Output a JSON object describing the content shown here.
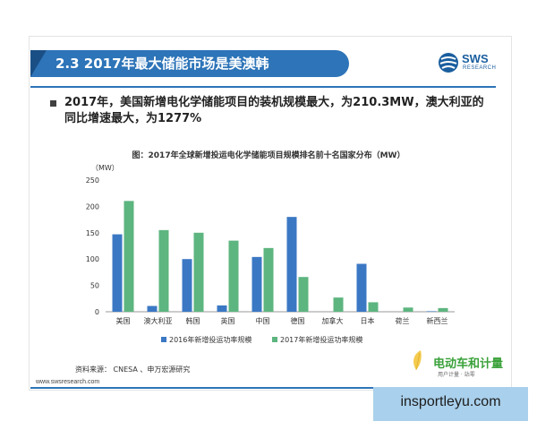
{
  "header": {
    "title": "2.3 2017年最大储能市场是美澳韩",
    "logo_text": "SWS",
    "logo_sub": "RESEARCH"
  },
  "bullet": {
    "text": "2017年，美国新增电化学储能项目的装机规模最大，为210.3MW，澳大利亚的同比增速最大，为1277%"
  },
  "chart_data": {
    "type": "bar",
    "title": "图：2017年全球新增投运电化学储能项目规模排名前十名国家分布（MW）",
    "ylabel": "（MW）",
    "ylim": [
      0,
      250
    ],
    "yticks": [
      0,
      50,
      100,
      150,
      200,
      250
    ],
    "grid": false,
    "legend_position": "bottom",
    "categories": [
      "美国",
      "澳大利亚",
      "韩国",
      "英国",
      "中国",
      "德国",
      "加拿大",
      "日本",
      "荷兰",
      "新西兰"
    ],
    "series": [
      {
        "name": "2016年新增投运功率规模",
        "color": "#3b78c4",
        "values": [
          147,
          11,
          100,
          12,
          104,
          180,
          0,
          91,
          0,
          1
        ]
      },
      {
        "name": "2017年新增投运功率规模",
        "color": "#5db57f",
        "values": [
          210.3,
          155,
          150,
          135,
          121,
          66,
          27,
          18,
          8,
          7
        ]
      }
    ]
  },
  "footer": {
    "source": "资料来源：  CNESA 、申万宏源研究",
    "url": "www.swsresearch.com"
  },
  "watermark1": {
    "text": "电动车和计量",
    "sub": "用户计量 · 站零"
  },
  "watermark2": {
    "text": "insportleyu.com"
  }
}
